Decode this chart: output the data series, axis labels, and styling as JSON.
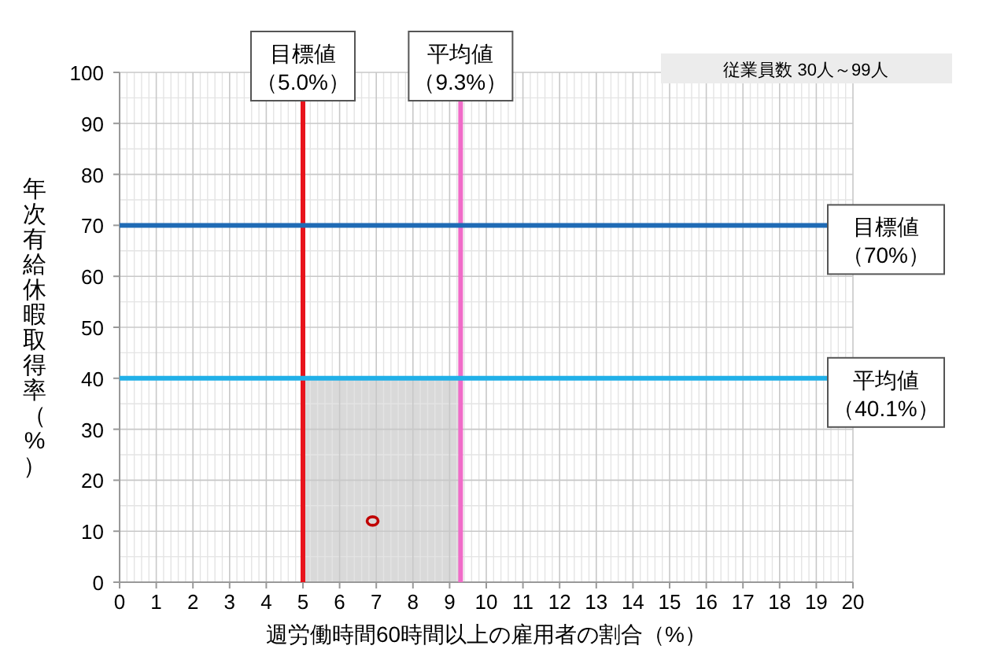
{
  "chart_data": {
    "type": "scatter",
    "xlabel": "週労働時間60時間以上の雇用者の割合（%）",
    "ylabel": "年次有給休暇取得率（%）",
    "x": [
      6.9
    ],
    "values": [
      12
    ],
    "color": "#c00000",
    "marker": "circle",
    "xlim": [
      0,
      20
    ],
    "ylim": [
      0,
      100
    ],
    "xticks": [
      0,
      1,
      2,
      3,
      4,
      5,
      6,
      7,
      8,
      9,
      10,
      11,
      12,
      13,
      14,
      15,
      16,
      17,
      18,
      19,
      20
    ],
    "yticks": [
      0,
      10,
      20,
      30,
      40,
      50,
      60,
      70,
      80,
      90,
      100
    ],
    "grid": true,
    "ref_lines": [
      {
        "axis": "x",
        "value": 5.0,
        "label": "目標値（5.0%）",
        "color": "#e8141c"
      },
      {
        "axis": "x",
        "value": 9.3,
        "label": "平均値（9.3%）",
        "color": "#f06cc8"
      },
      {
        "axis": "y",
        "value": 70,
        "label": "目標値（70%）",
        "color": "#1f6bb5"
      },
      {
        "axis": "y",
        "value": 40,
        "label": "平均値（40.1%）",
        "color": "#21b0e8"
      }
    ],
    "bands": [
      {
        "axis": "x",
        "from": 5.0,
        "to": 9.3,
        "color": "#d9d9d9"
      }
    ],
    "annotations": [
      "従業員数 30人～99人"
    ]
  }
}
